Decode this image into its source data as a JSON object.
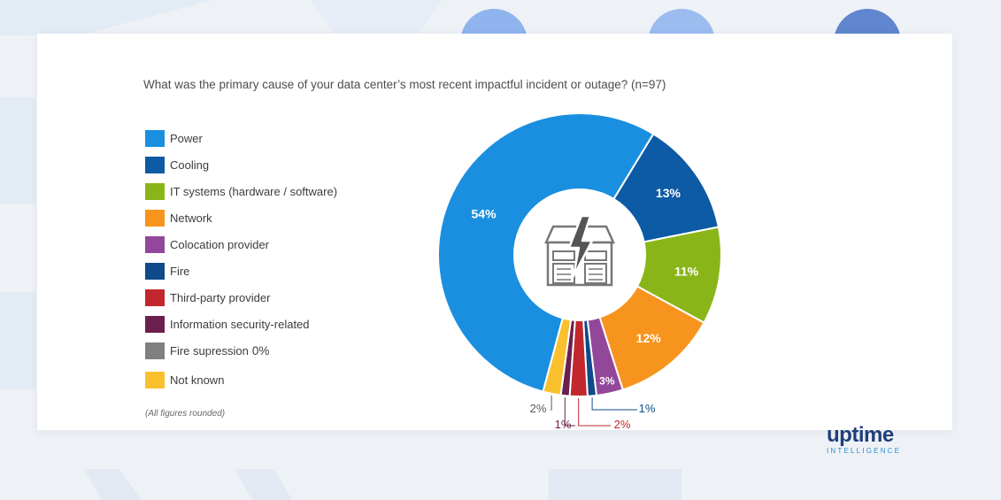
{
  "question": "What was the primary cause of your data center’s most recent impactful incident or outage? (n=97)",
  "note": "(All figures rounded)",
  "logo": {
    "word": "uptime",
    "sub": "INTELLIGENCE"
  },
  "legend": [
    {
      "label": "Power",
      "color": "#1a8fdf",
      "extra": ""
    },
    {
      "label": "Cooling",
      "color": "#0d5aa5",
      "extra": ""
    },
    {
      "label": "IT systems (hardware / software)",
      "color": "#8ab518",
      "extra": ""
    },
    {
      "label": "Network",
      "color": "#f7941d",
      "extra": ""
    },
    {
      "label": "Colocation provider",
      "color": "#93479a",
      "extra": ""
    },
    {
      "label": "Fire",
      "color": "#0f4a8a",
      "extra": ""
    },
    {
      "label": "Third-party provider",
      "color": "#c1272d",
      "extra": ""
    },
    {
      "label": "Information security-related",
      "color": "#6b1f4e",
      "extra": ""
    },
    {
      "label": "Fire supression",
      "color": "#808080",
      "extra": "0%"
    },
    {
      "label": "Not known",
      "color": "#fbc02d",
      "extra": ""
    }
  ],
  "chart_data": {
    "type": "pie",
    "title": "What was the primary cause of your data center’s most recent impactful incident or outage? (n=97)",
    "categories": [
      "Power",
      "Cooling",
      "IT systems (hardware / software)",
      "Network",
      "Colocation provider",
      "Fire",
      "Third-party provider",
      "Information security-related",
      "Fire supression",
      "Not known"
    ],
    "values": [
      54,
      13,
      11,
      12,
      3,
      1,
      2,
      1,
      0,
      2
    ],
    "labels": [
      "54%",
      "13%",
      "11%",
      "12%",
      "3%",
      "1%",
      "2%",
      "1%",
      "0%",
      "2%"
    ],
    "colors": [
      "#1a8fdf",
      "#0d5aa5",
      "#8ab518",
      "#f7941d",
      "#93479a",
      "#0f4a8a",
      "#c1272d",
      "#6b1f4e",
      "#808080",
      "#fbc02d"
    ],
    "donut": true,
    "legend_position": "left",
    "footnote": "(All figures rounded)"
  }
}
